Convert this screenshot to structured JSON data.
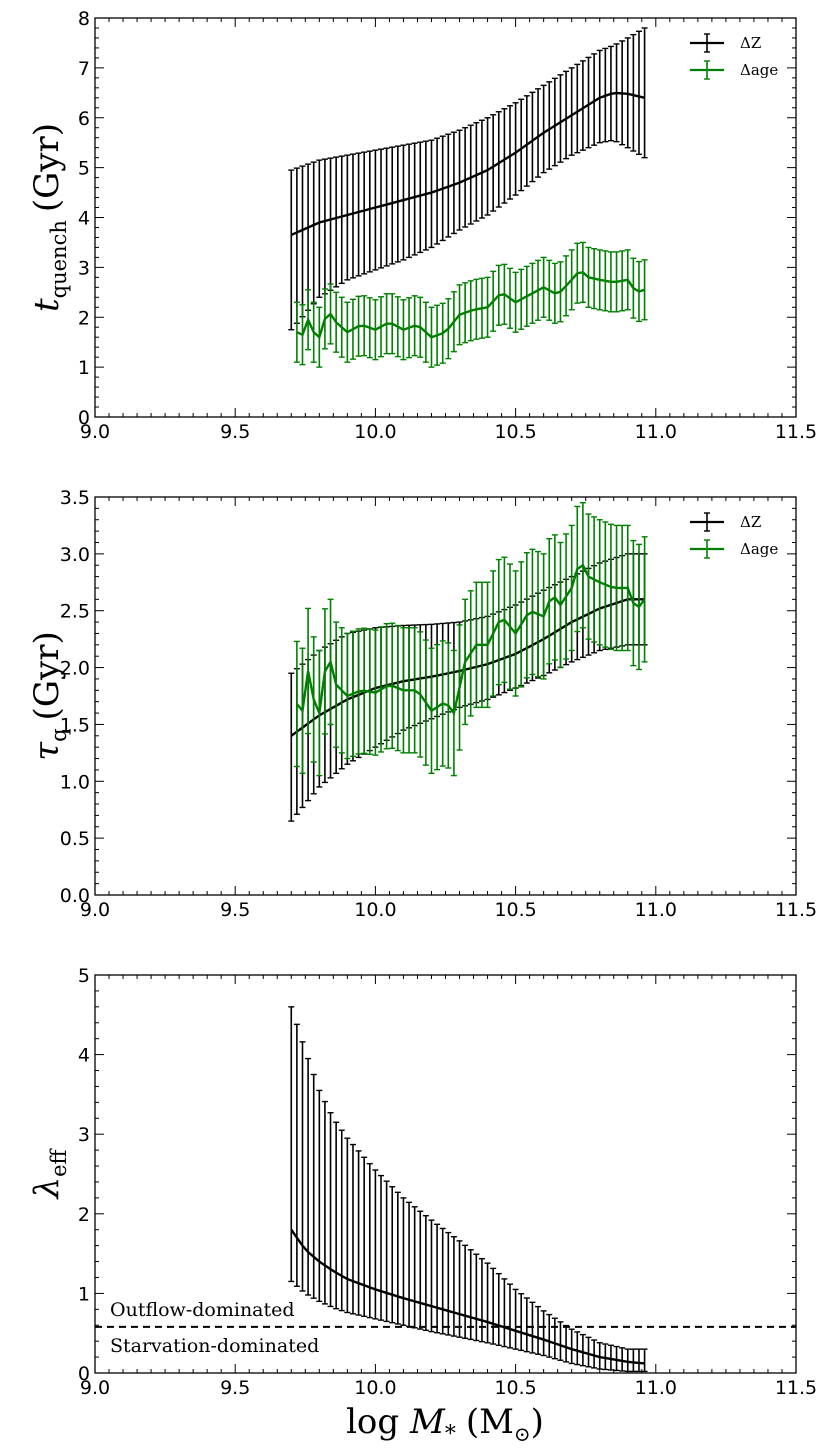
{
  "colors": {
    "dZ": "#000000",
    "dage": "#008000"
  },
  "xaxis": {
    "label_main": "log ",
    "label_var": "M",
    "label_sub": "*",
    "label_unit": "(M",
    "label_unit_sub": "⊙",
    "label_close": ")"
  },
  "chart_data": [
    {
      "type": "line",
      "panel": "top",
      "ylabel": {
        "var": "t",
        "sub": "quench",
        "unit": "(Gyr)"
      },
      "xlim": [
        9.0,
        11.5
      ],
      "ylim": [
        0,
        8
      ],
      "xticks": [
        "9.0",
        "9.5",
        "10.0",
        "10.5",
        "11.0",
        "11.5"
      ],
      "yticks": [
        "0",
        "1",
        "2",
        "3",
        "4",
        "5",
        "6",
        "7",
        "8"
      ],
      "legend": {
        "position": "top-right",
        "entries": [
          "ΔZ",
          "Δage"
        ]
      },
      "series": [
        {
          "name": "ΔZ",
          "color": "#000000",
          "x_range": [
            9.7,
            10.96
          ],
          "knots_x": [
            9.7,
            9.8,
            9.9,
            10.0,
            10.1,
            10.2,
            10.3,
            10.4,
            10.5,
            10.6,
            10.7,
            10.8,
            10.85,
            10.9,
            10.96
          ],
          "knots_y": [
            3.65,
            3.9,
            4.05,
            4.2,
            4.35,
            4.5,
            4.7,
            4.95,
            5.3,
            5.7,
            6.05,
            6.4,
            6.5,
            6.48,
            6.4
          ],
          "knots_lo": [
            1.75,
            2.4,
            2.75,
            2.95,
            3.15,
            3.4,
            3.75,
            4.05,
            4.45,
            4.9,
            5.25,
            5.5,
            5.55,
            5.4,
            5.2
          ],
          "knots_hi": [
            4.95,
            5.15,
            5.25,
            5.35,
            5.45,
            5.55,
            5.75,
            6.0,
            6.3,
            6.65,
            7.0,
            7.35,
            7.45,
            7.6,
            7.8
          ]
        },
        {
          "name": "Δage",
          "color": "#008000",
          "x_range": [
            9.72,
            10.96
          ],
          "knots_x": [
            9.72,
            9.74,
            9.76,
            9.78,
            9.8,
            9.83,
            9.86,
            9.9,
            9.95,
            10.0,
            10.05,
            10.1,
            10.15,
            10.2,
            10.25,
            10.3,
            10.35,
            10.4,
            10.45,
            10.5,
            10.55,
            10.6,
            10.65,
            10.7,
            10.73,
            10.76,
            10.8,
            10.85,
            10.9,
            10.93,
            10.96
          ],
          "knots_y": [
            1.7,
            1.65,
            1.95,
            1.7,
            1.6,
            2.15,
            1.9,
            1.7,
            1.85,
            1.75,
            1.9,
            1.75,
            1.85,
            1.6,
            1.7,
            2.05,
            2.15,
            2.2,
            2.5,
            2.3,
            2.45,
            2.6,
            2.45,
            2.75,
            2.95,
            2.8,
            2.75,
            2.7,
            2.75,
            2.5,
            2.55
          ],
          "err": 0.6
        }
      ]
    },
    {
      "type": "line",
      "panel": "middle",
      "ylabel": {
        "var": "τ",
        "sub": "q",
        "unit": "(Gyr)"
      },
      "xlim": [
        9.0,
        11.5
      ],
      "ylim": [
        0,
        3.5
      ],
      "xticks": [
        "9.0",
        "9.5",
        "10.0",
        "10.5",
        "11.0",
        "11.5"
      ],
      "yticks": [
        "0.0",
        "0.5",
        "1.0",
        "1.5",
        "2.0",
        "2.5",
        "3.0",
        "3.5"
      ],
      "legend": {
        "position": "top-right",
        "entries": [
          "ΔZ",
          "Δage"
        ]
      },
      "series": [
        {
          "name": "ΔZ",
          "color": "#000000",
          "x_range": [
            9.7,
            10.96
          ],
          "knots_x": [
            9.7,
            9.8,
            9.9,
            10.0,
            10.1,
            10.2,
            10.3,
            10.4,
            10.5,
            10.6,
            10.7,
            10.8,
            10.9,
            10.96
          ],
          "knots_y": [
            1.4,
            1.58,
            1.72,
            1.82,
            1.88,
            1.92,
            1.97,
            2.03,
            2.12,
            2.25,
            2.4,
            2.52,
            2.6,
            2.6
          ],
          "knots_lo": [
            0.65,
            0.95,
            1.15,
            1.3,
            1.45,
            1.55,
            1.65,
            1.72,
            1.82,
            1.93,
            2.05,
            2.15,
            2.2,
            2.2
          ],
          "knots_hi": [
            1.95,
            2.15,
            2.3,
            2.35,
            2.37,
            2.38,
            2.4,
            2.45,
            2.55,
            2.68,
            2.8,
            2.92,
            3.0,
            3.0
          ]
        },
        {
          "name": "Δage",
          "color": "#008000",
          "x_range": [
            9.72,
            10.96
          ],
          "knots_x": [
            9.72,
            9.74,
            9.76,
            9.78,
            9.8,
            9.83,
            9.86,
            9.9,
            9.95,
            10.0,
            10.05,
            10.1,
            10.15,
            10.2,
            10.25,
            10.28,
            10.32,
            10.36,
            10.4,
            10.45,
            10.5,
            10.55,
            10.6,
            10.63,
            10.66,
            10.7,
            10.73,
            10.76,
            10.8,
            10.85,
            10.9,
            10.93,
            10.96
          ],
          "knots_y": [
            1.68,
            1.62,
            1.97,
            1.72,
            1.6,
            2.15,
            1.85,
            1.75,
            1.8,
            1.78,
            1.85,
            1.8,
            1.8,
            1.62,
            1.7,
            1.6,
            2.05,
            2.2,
            2.2,
            2.45,
            2.3,
            2.5,
            2.45,
            2.65,
            2.55,
            2.7,
            2.95,
            2.8,
            2.75,
            2.7,
            2.7,
            2.5,
            2.6
          ],
          "err": 0.55
        }
      ]
    },
    {
      "type": "line",
      "panel": "bottom",
      "ylabel": {
        "var": "λ",
        "sub": "eff",
        "unit": ""
      },
      "xlim": [
        9.0,
        11.5
      ],
      "ylim": [
        0,
        5
      ],
      "xticks": [
        "9.0",
        "9.5",
        "10.0",
        "10.5",
        "11.0",
        "11.5"
      ],
      "yticks": [
        "0",
        "1",
        "2",
        "3",
        "4",
        "5"
      ],
      "hline": {
        "y": 0.58,
        "style": "dashed"
      },
      "annotations": [
        "Outflow-dominated",
        "Starvation-dominated"
      ],
      "series": [
        {
          "name": "",
          "color": "#000000",
          "x_range": [
            9.7,
            10.96
          ],
          "knots_x": [
            9.7,
            9.75,
            9.8,
            9.85,
            9.9,
            10.0,
            10.1,
            10.2,
            10.3,
            10.4,
            10.5,
            10.6,
            10.7,
            10.8,
            10.9,
            10.96
          ],
          "knots_y": [
            1.8,
            1.55,
            1.4,
            1.28,
            1.18,
            1.05,
            0.94,
            0.84,
            0.74,
            0.64,
            0.53,
            0.42,
            0.3,
            0.2,
            0.14,
            0.12
          ],
          "knots_lo": [
            1.15,
            1.0,
            0.9,
            0.82,
            0.76,
            0.68,
            0.6,
            0.52,
            0.45,
            0.38,
            0.3,
            0.22,
            0.12,
            0.05,
            0.02,
            0.02
          ],
          "knots_hi": [
            4.6,
            4.05,
            3.55,
            3.2,
            2.95,
            2.55,
            2.2,
            1.92,
            1.66,
            1.38,
            1.05,
            0.78,
            0.55,
            0.38,
            0.3,
            0.3
          ]
        }
      ]
    }
  ]
}
